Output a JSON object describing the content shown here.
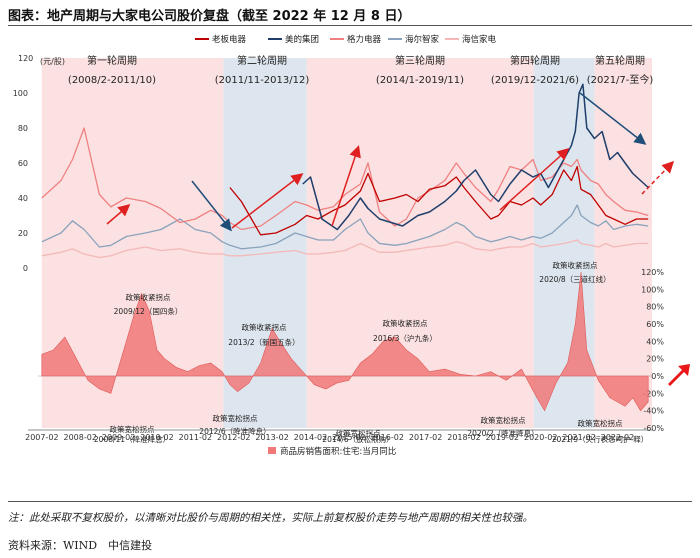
{
  "header": {
    "title": "图表：地产周期与大家电公司股价复盘（截至 2022 年 12 月 8 日）"
  },
  "footer": {
    "note": "注：此处采取不复权股价，以清晰对比股价与周期的相关性，实际上前复权股价走势与地产周期的相关性也较强。",
    "source": "资料来源：WIND　中信建投"
  },
  "colors": {
    "laoban": "#c00000",
    "midea": "#1f3e6b",
    "gree": "#f08080",
    "haier": "#8aa2bc",
    "hisense": "#f4b8b8",
    "sales": "#f07878",
    "arrow_red": "#e02020",
    "arrow_blue": "#1f4e79",
    "band_pink": "#fbe1e1",
    "band_blue": "#dde6ee"
  },
  "chart_data": [
    {
      "type": "line",
      "ylabel": "(元/股)",
      "ylim": [
        0,
        120
      ],
      "yticks": [
        "0",
        "20",
        "40",
        "60",
        "80",
        "100",
        "120"
      ],
      "legend": [
        "老板电器",
        "美的集团",
        "格力电器",
        "海尔智家",
        "海信家电"
      ],
      "cycles": [
        {
          "name": "第一轮周期",
          "range": "(2008/2-2011/10)"
        },
        {
          "name": "第二轮周期",
          "range": "(2011/11-2013/12)"
        },
        {
          "name": "第三轮周期",
          "range": "(2014/1-2019/11)"
        },
        {
          "name": "第四轮周期",
          "range": "(2019/12-2021/6)"
        },
        {
          "name": "第五轮周期",
          "range": "(2021/7-至今)"
        }
      ],
      "x": [
        2007.1,
        2007.6,
        2007.9,
        2008.2,
        2008.6,
        2008.9,
        2009.3,
        2009.8,
        2010.2,
        2010.7,
        2011.1,
        2011.5,
        2011.8,
        2012.0,
        2012.3,
        2012.8,
        2013.2,
        2013.7,
        2014.0,
        2014.3,
        2014.7,
        2015.0,
        2015.4,
        2015.6,
        2015.9,
        2016.3,
        2016.6,
        2016.9,
        2017.2,
        2017.6,
        2017.9,
        2018.1,
        2018.4,
        2018.8,
        2019.0,
        2019.3,
        2019.6,
        2019.9,
        2020.1,
        2020.4,
        2020.7,
        2020.9,
        2021.05,
        2021.15,
        2021.4,
        2021.6,
        2021.8,
        2022.0,
        2022.3,
        2022.6,
        2022.9
      ],
      "series": [
        {
          "name": "老板电器",
          "values": [
            null,
            null,
            null,
            null,
            null,
            null,
            null,
            null,
            null,
            null,
            null,
            null,
            null,
            46,
            38,
            19,
            20,
            25,
            30,
            28,
            33,
            36,
            44,
            54,
            38,
            40,
            42,
            38,
            45,
            47,
            52,
            46,
            38,
            28,
            30,
            38,
            36,
            40,
            36,
            42,
            56,
            50,
            58,
            45,
            42,
            36,
            30,
            28,
            25,
            28,
            28
          ]
        },
        {
          "name": "美的集团",
          "values": [
            null,
            null,
            null,
            null,
            null,
            null,
            null,
            null,
            null,
            null,
            null,
            null,
            null,
            null,
            null,
            null,
            null,
            null,
            null,
            null,
            null,
            null,
            null,
            null,
            null,
            null,
            null,
            null,
            null,
            null,
            null,
            null,
            null,
            null,
            null,
            null,
            null,
            null,
            null,
            null,
            null,
            null,
            null,
            null,
            null,
            null,
            null,
            null,
            null,
            null,
            null
          ]
        },
        {
          "name": "格力电器",
          "values": [
            40,
            50,
            62,
            80,
            42,
            35,
            40,
            38,
            34,
            26,
            28,
            33,
            30,
            26,
            22,
            24,
            30,
            38,
            36,
            33,
            35,
            42,
            48,
            60,
            32,
            24,
            28,
            40,
            44,
            50,
            60,
            54,
            46,
            38,
            45,
            58,
            56,
            62,
            50,
            52,
            60,
            58,
            62,
            56,
            50,
            48,
            42,
            38,
            33,
            32,
            30
          ]
        },
        {
          "name": "海尔智家",
          "values": [
            15,
            20,
            27,
            22,
            12,
            13,
            18,
            20,
            22,
            28,
            22,
            20,
            15,
            13,
            11,
            12,
            14,
            20,
            18,
            16,
            16,
            22,
            28,
            20,
            14,
            13,
            14,
            16,
            18,
            22,
            26,
            24,
            18,
            15,
            16,
            18,
            16,
            18,
            17,
            20,
            26,
            30,
            36,
            30,
            26,
            24,
            27,
            22,
            24,
            25,
            24
          ]
        },
        {
          "name": "海信家电",
          "values": [
            7,
            9,
            11,
            8,
            6,
            7,
            10,
            12,
            10,
            11,
            9,
            8,
            8,
            7,
            7,
            8,
            9,
            10,
            8,
            8,
            9,
            10,
            14,
            12,
            9,
            9,
            10,
            11,
            12,
            13,
            15,
            14,
            11,
            10,
            11,
            12,
            12,
            14,
            12,
            13,
            14,
            15,
            16,
            14,
            13,
            12,
            14,
            12,
            13,
            14,
            14
          ]
        }
      ],
      "midea_series": {
        "x": [
          2013.9,
          2014.1,
          2014.4,
          2014.8,
          2015.1,
          2015.4,
          2015.6,
          2015.9,
          2016.2,
          2016.5,
          2016.9,
          2017.2,
          2017.6,
          2017.9,
          2018.1,
          2018.4,
          2018.8,
          2019.0,
          2019.3,
          2019.6,
          2019.9,
          2020.1,
          2020.3,
          2020.6,
          2020.9,
          2021.0,
          2021.1,
          2021.2,
          2021.3,
          2021.5,
          2021.7,
          2021.9,
          2022.1,
          2022.3,
          2022.5,
          2022.7,
          2022.9
        ],
        "values": [
          48,
          52,
          28,
          22,
          30,
          40,
          34,
          28,
          26,
          24,
          30,
          32,
          38,
          44,
          50,
          56,
          42,
          38,
          48,
          56,
          52,
          54,
          46,
          58,
          70,
          78,
          100,
          105,
          80,
          74,
          78,
          62,
          66,
          60,
          54,
          50,
          46
        ]
      },
      "annotations_ticks": [
        "2007-02",
        "2008-02",
        "2009-02",
        "2010-02",
        "2011-02",
        "2012-02",
        "2013-02",
        "2014-02",
        "2015-02",
        "2016-02",
        "2017-02",
        "2018-02",
        "2019-02",
        "2020-02",
        "2021-02",
        "2022-02"
      ]
    },
    {
      "type": "area",
      "legend": [
        "商品房销售面积:住宅:当月同比"
      ],
      "ylim": [
        -60,
        120
      ],
      "yticks": [
        "120%",
        "100%",
        "80%",
        "60%",
        "40%",
        "20%",
        "0%",
        "-20%",
        "-40%",
        "-60%"
      ],
      "x": [
        2007.1,
        2007.4,
        2007.7,
        2008.0,
        2008.3,
        2008.6,
        2008.9,
        2009.1,
        2009.3,
        2009.5,
        2009.7,
        2009.9,
        2010.1,
        2010.3,
        2010.6,
        2010.9,
        2011.2,
        2011.5,
        2011.8,
        2012.0,
        2012.2,
        2012.5,
        2012.8,
        2013.1,
        2013.3,
        2013.6,
        2013.9,
        2014.2,
        2014.5,
        2014.8,
        2015.1,
        2015.4,
        2015.7,
        2016.0,
        2016.3,
        2016.6,
        2016.9,
        2017.2,
        2017.6,
        2018.0,
        2018.4,
        2018.8,
        2019.2,
        2019.6,
        2020.0,
        2020.2,
        2020.5,
        2020.8,
        2021.0,
        2021.15,
        2021.3,
        2021.6,
        2021.9,
        2022.1,
        2022.3,
        2022.5,
        2022.7,
        2022.9
      ],
      "values": [
        25,
        30,
        45,
        20,
        -5,
        -15,
        -20,
        10,
        40,
        70,
        95,
        75,
        30,
        20,
        10,
        5,
        12,
        15,
        5,
        -10,
        -18,
        -8,
        15,
        55,
        40,
        20,
        5,
        -10,
        -15,
        -8,
        -5,
        15,
        25,
        40,
        45,
        30,
        20,
        5,
        8,
        2,
        0,
        5,
        -5,
        8,
        -25,
        -40,
        -8,
        15,
        60,
        120,
        30,
        -5,
        -25,
        -30,
        -35,
        -25,
        -40,
        -30
      ]
    }
  ],
  "chart_texts": {
    "policy_points": [
      {
        "label": "政策收紧拐点",
        "date": "2009/12（国四条）"
      },
      {
        "label": "政策宽松拐点",
        "date": "2008/11（降准降息）"
      },
      {
        "label": "政策收紧拐点",
        "date": "2013/2（新国五条）"
      },
      {
        "label": "政策宽松拐点",
        "date": "2012/6（降准降息）"
      },
      {
        "label": "政策收紧拐点",
        "date": "2016/3（沪九条）"
      },
      {
        "label": "政策宽松拐点",
        "date": "2014/6（放松限购）"
      },
      {
        "label": "政策收紧拐点",
        "date": "2020/8（三道红线）"
      },
      {
        "label": "政策宽松拐点",
        "date": "2020/2（降准降息）"
      },
      {
        "label": "政策宽松拐点",
        "date": "2021/9（央行表态呵护-释）"
      }
    ]
  }
}
